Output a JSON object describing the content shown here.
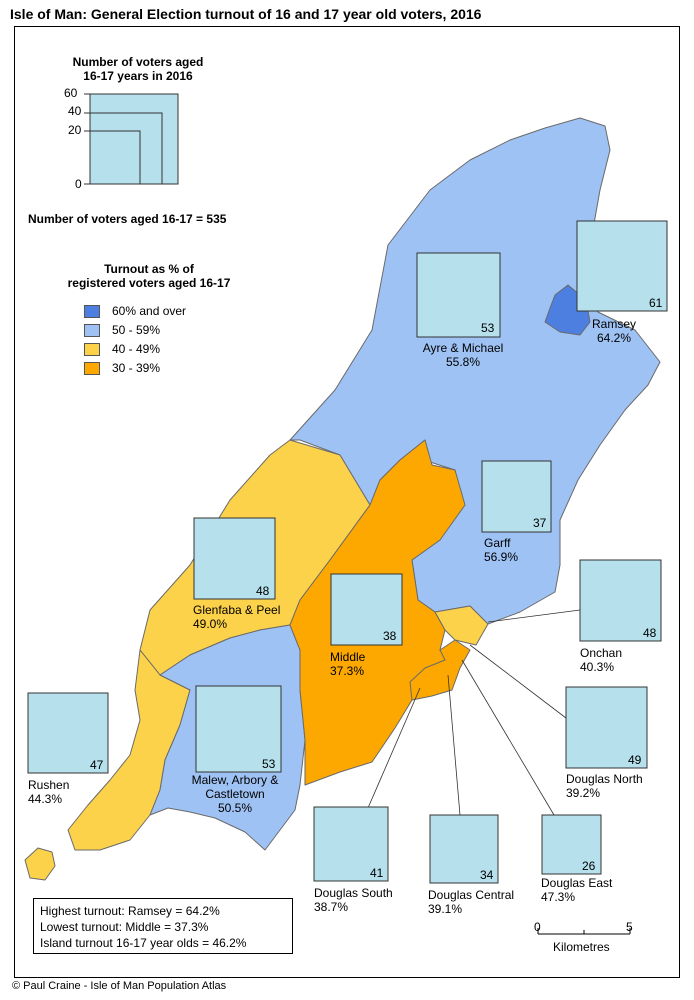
{
  "title": "Isle of Man: General Election turnout of 16 and 17 year old voters, 2016",
  "size_legend": {
    "heading_line1": "Number of voters aged",
    "heading_line2": "16-17 years in 2016",
    "scale_values": [
      "60",
      "40",
      "20",
      "0"
    ]
  },
  "total_text": "Number of voters aged 16-17 = 535",
  "turnout_legend": {
    "heading_line1": "Turnout as % of",
    "heading_line2": "registered voters aged 16-17",
    "classes": [
      {
        "label": "60% and over",
        "color": "#4d7fe0"
      },
      {
        "label": "50 - 59%",
        "color": "#9fc2f4"
      },
      {
        "label": "40 - 49%",
        "color": "#fcd24a"
      },
      {
        "label": "30 - 39%",
        "color": "#fca800"
      }
    ]
  },
  "constituencies": [
    {
      "name": "Ramsey",
      "voters": "61",
      "turnout": "64.2%"
    },
    {
      "name": "Ayre & Michael",
      "voters": "53",
      "turnout": "55.8%"
    },
    {
      "name": "Garff",
      "voters": "37",
      "turnout": "56.9%"
    },
    {
      "name": "Onchan",
      "voters": "48",
      "turnout": "40.3%"
    },
    {
      "name": "Glenfaba & Peel",
      "voters": "48",
      "turnout": "49.0%"
    },
    {
      "name": "Middle",
      "voters": "38",
      "turnout": "37.3%"
    },
    {
      "name": "Rushen",
      "voters": "47",
      "turnout": "44.3%"
    },
    {
      "name_line1": "Malew, Arbory &",
      "name_line2": "Castletown",
      "voters": "53",
      "turnout": "50.5%"
    },
    {
      "name": "Douglas North",
      "voters": "49",
      "turnout": "39.2%"
    },
    {
      "name": "Douglas South",
      "voters": "41",
      "turnout": "38.7%"
    },
    {
      "name": "Douglas Central",
      "voters": "34",
      "turnout": "39.1%"
    },
    {
      "name": "Douglas East",
      "voters": "26",
      "turnout": "47.3%"
    }
  ],
  "summary": {
    "highest": "Highest turnout: Ramsey = 64.2%",
    "lowest": "Lowest turnout: Middle = 37.3%",
    "island": "Island turnout 16-17 year olds = 46.2%"
  },
  "scale_bar": {
    "start": "0",
    "end": "5",
    "unit": "Kilometres"
  },
  "copyright": "© Paul Craine - Isle of Man Population Atlas"
}
